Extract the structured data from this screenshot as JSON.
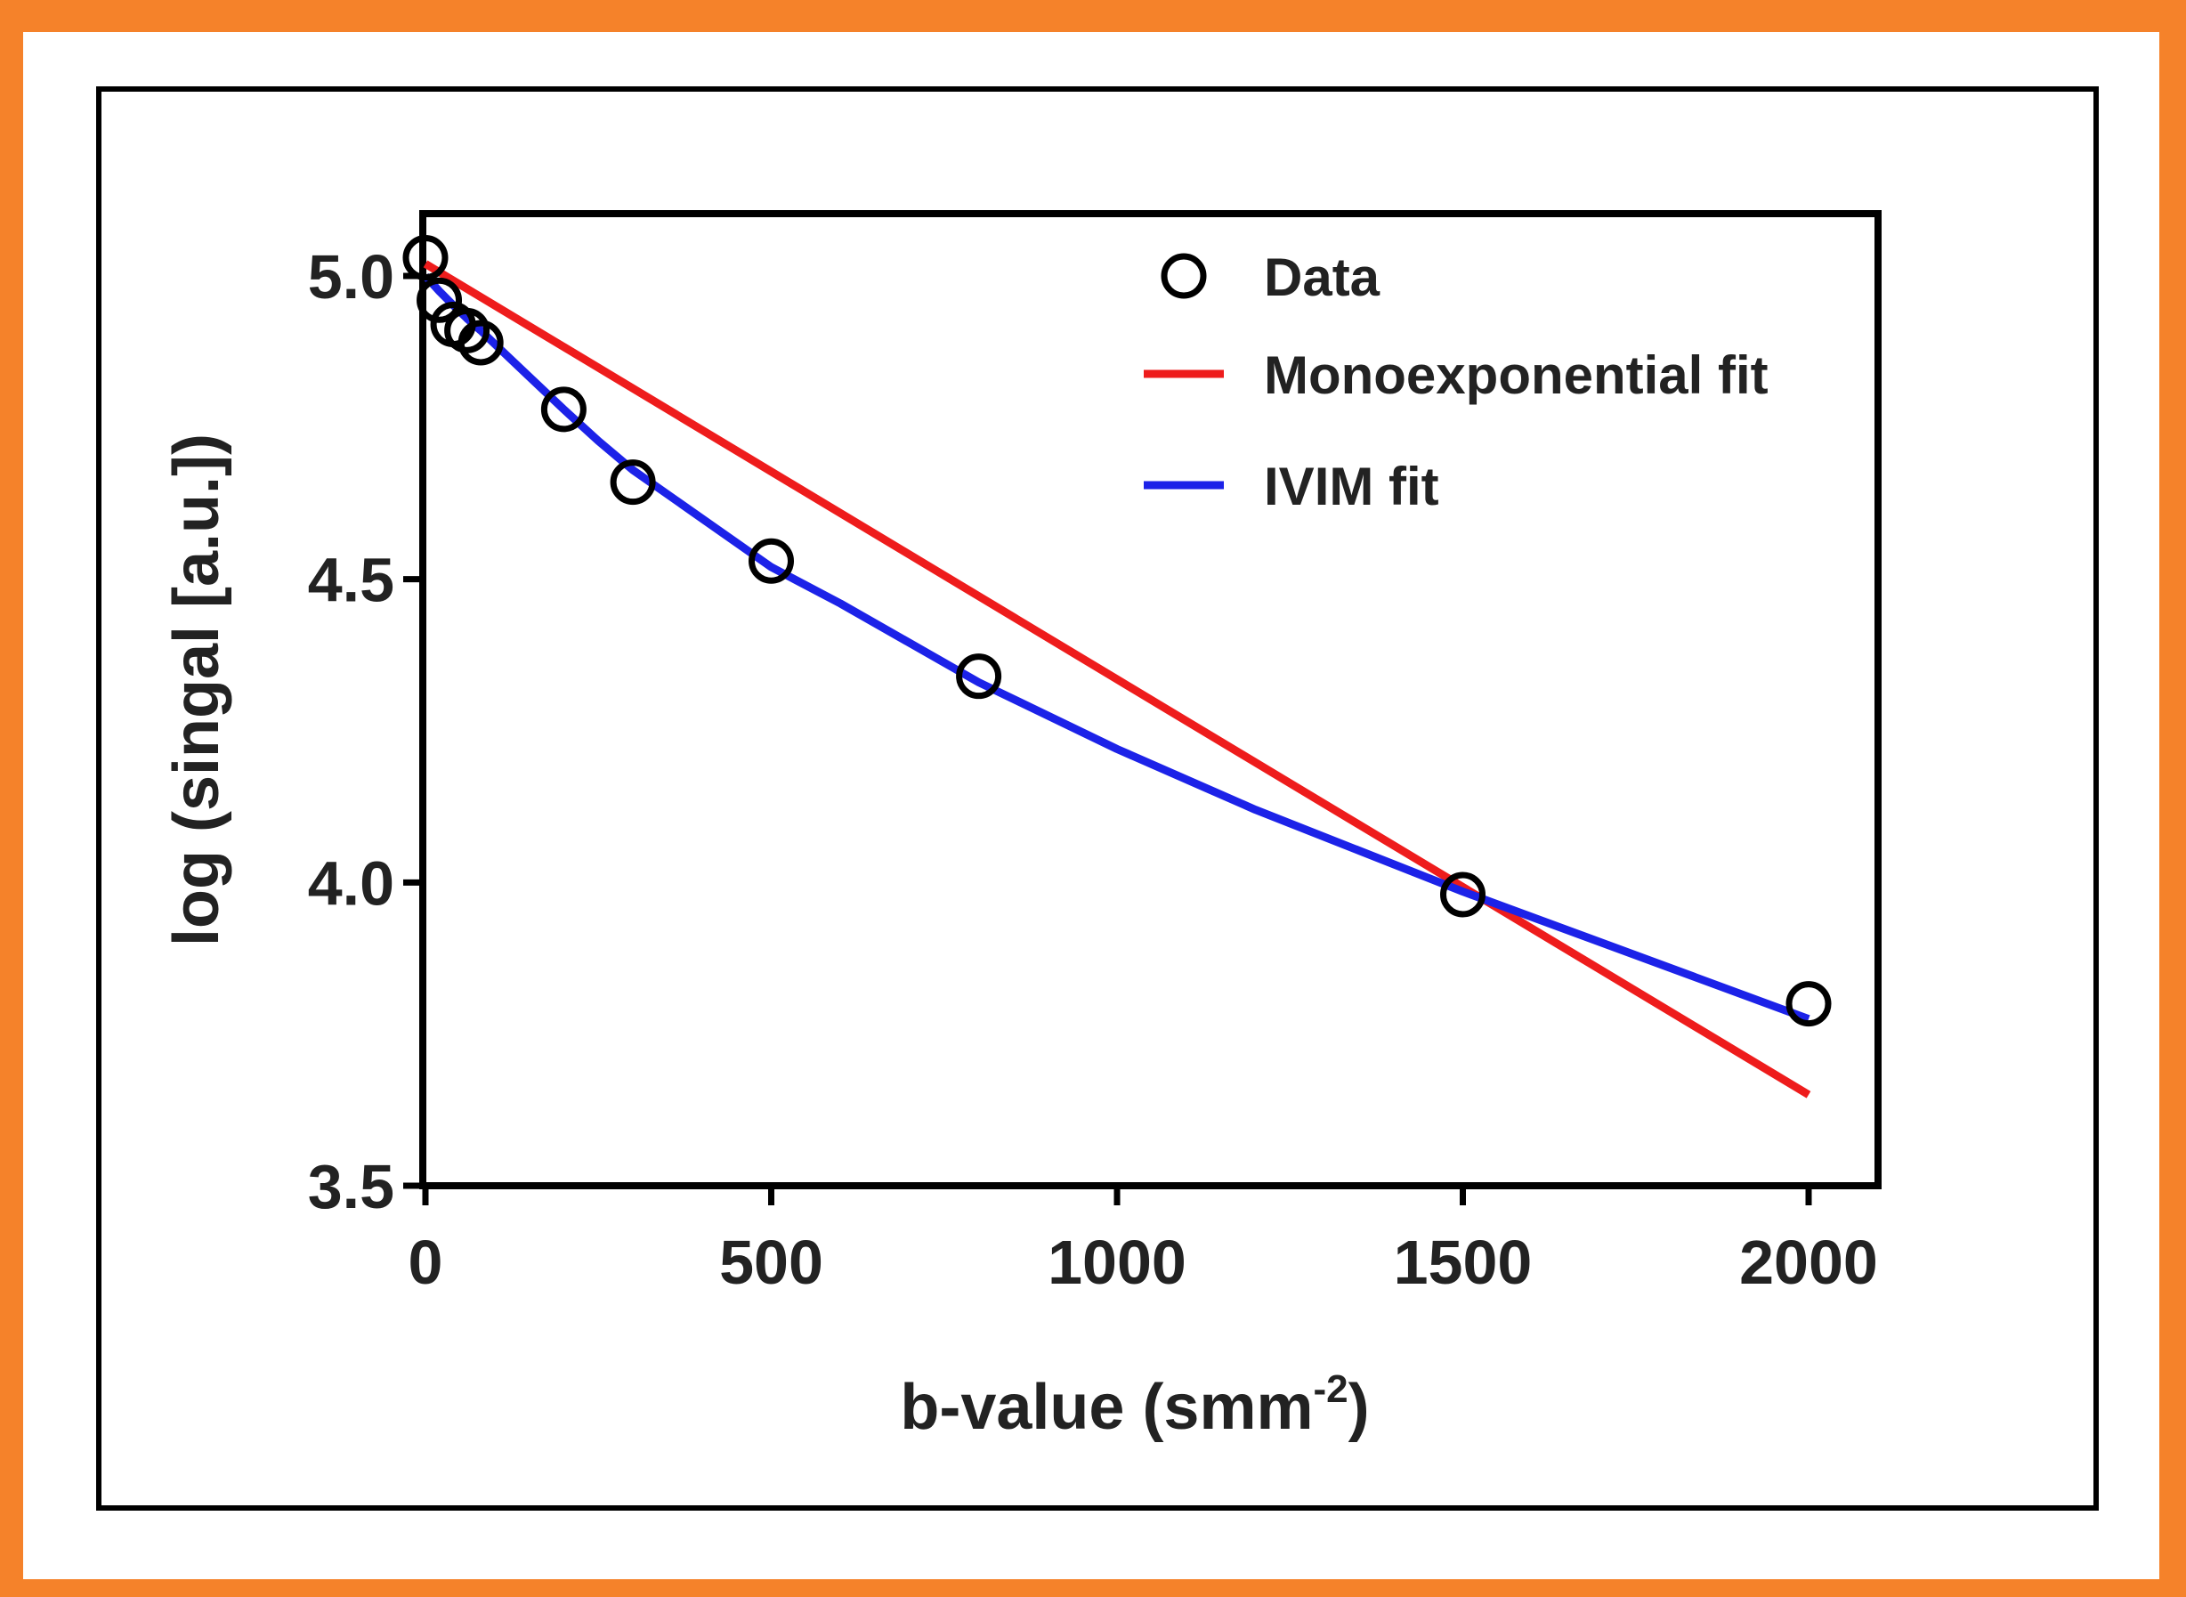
{
  "chart_data": {
    "type": "scatter",
    "title": "",
    "xlabel_main": "b-value (smm",
    "xlabel_sup": "-2",
    "xlabel_close": ")",
    "ylabel": "log (singal [a.u.])",
    "xlim": [
      0,
      2100
    ],
    "ylim": [
      3.5,
      5.1
    ],
    "x_ticks": [
      0,
      500,
      1000,
      1500,
      2000
    ],
    "x_tick_labels": [
      "0",
      "500",
      "1000",
      "1500",
      "2000"
    ],
    "y_ticks": [
      3.5,
      4.0,
      4.5,
      5.0
    ],
    "y_tick_labels": [
      "3.5",
      "4.0",
      "4.5",
      "5.0"
    ],
    "grid": false,
    "legend_position": "top-right",
    "series": [
      {
        "name": "Data",
        "kind": "markers",
        "color": "#000000",
        "x": [
          0,
          20,
          40,
          60,
          80,
          200,
          300,
          500,
          800,
          1500,
          2000
        ],
        "y": [
          5.03,
          4.96,
          4.92,
          4.91,
          4.89,
          4.78,
          4.66,
          4.53,
          4.34,
          3.98,
          3.8
        ]
      },
      {
        "name": "Monoexponential fit",
        "kind": "line",
        "color": "#ee1c1c",
        "x": [
          0,
          2000
        ],
        "y": [
          5.02,
          3.65
        ]
      },
      {
        "name": "IVIM fit",
        "kind": "line",
        "color": "#1c22e8",
        "x": [
          0,
          20,
          40,
          60,
          80,
          100,
          150,
          200,
          250,
          300,
          400,
          500,
          600,
          800,
          1000,
          1200,
          1500,
          2000
        ],
        "y": [
          5.0,
          4.975,
          4.952,
          4.93,
          4.91,
          4.888,
          4.834,
          4.78,
          4.728,
          4.68,
          4.6,
          4.52,
          4.46,
          4.33,
          4.22,
          4.12,
          3.985,
          3.775
        ]
      }
    ]
  }
}
